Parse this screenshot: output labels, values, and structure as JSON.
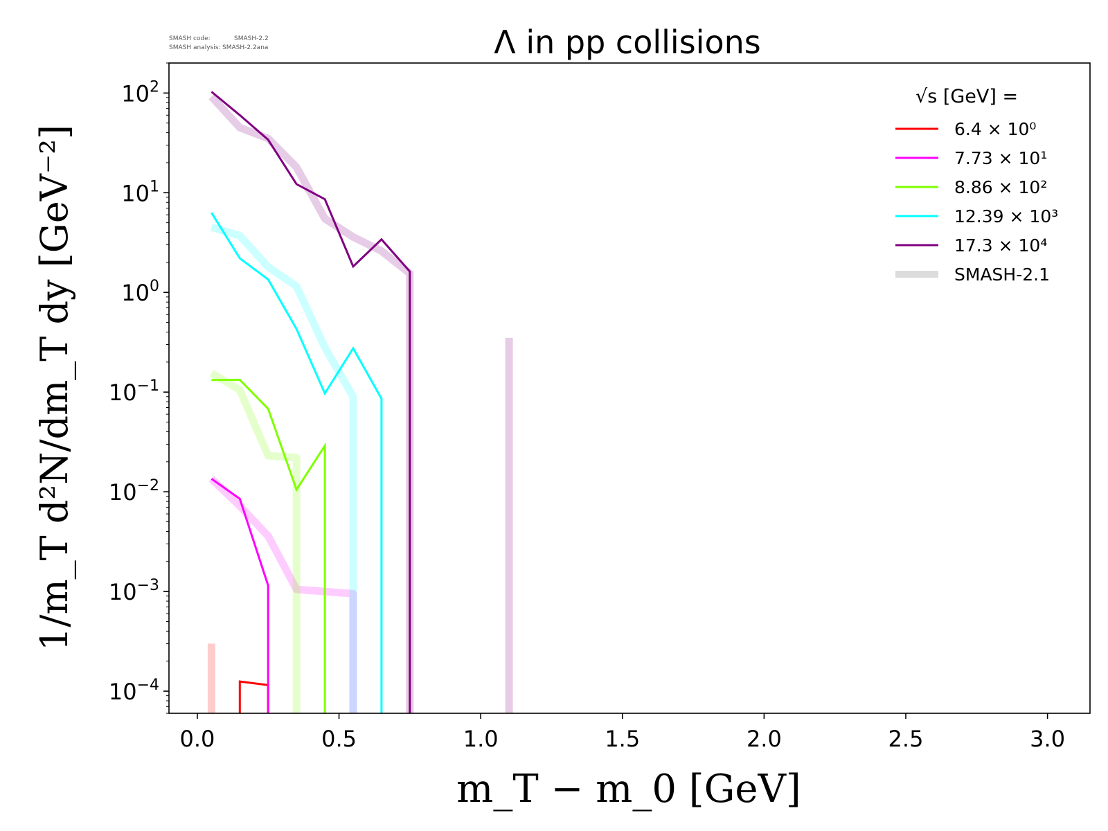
{
  "meta": {
    "code_label": "SMASH code:",
    "code_value": "SMASH-2.2",
    "analysis_label": "SMASH analysis:",
    "analysis_value": "SMASH-2.2ana"
  },
  "chart_data": {
    "type": "line",
    "title": "Λ in pp collisions",
    "xlabel": "m_T − m_0 [GeV]",
    "ylabel": "1/m_T d²N/dm_T dy [GeV⁻²]",
    "xlim": [
      -0.1,
      3.15
    ],
    "ylim": [
      6e-05,
      200
    ],
    "yscale": "log",
    "xticks": [
      "0.0",
      "0.5",
      "1.0",
      "1.5",
      "2.0",
      "2.5",
      "3.0"
    ],
    "yticks": [
      {
        "mantissa": "10",
        "exp": "−4"
      },
      {
        "mantissa": "10",
        "exp": "−3"
      },
      {
        "mantissa": "10",
        "exp": "−2"
      },
      {
        "mantissa": "10",
        "exp": "−1"
      },
      {
        "mantissa": "10",
        "exp": "0"
      },
      {
        "mantissa": "10",
        "exp": "1"
      },
      {
        "mantissa": "10",
        "exp": "2"
      }
    ],
    "legend": {
      "position": "top-right",
      "header": "√s  [GeV] =",
      "reference_label": "SMASH-2.1"
    },
    "series": [
      {
        "name": "6.4 × 10⁰",
        "color": "#ff0000",
        "points": [
          [
            0.15,
            1e-07
          ],
          [
            0.15,
            0.000125
          ],
          [
            0.25,
            0.000115
          ],
          [
            0.25,
            1e-07
          ]
        ],
        "reference_points": [
          [
            0.05,
            1e-07
          ],
          [
            0.05,
            0.0003
          ]
        ]
      },
      {
        "name": "7.73 × 10¹",
        "color": "#ff00ff",
        "points": [
          [
            0.05,
            0.0135
          ],
          [
            0.15,
            0.0085
          ],
          [
            0.25,
            0.00115
          ],
          [
            0.25,
            1e-07
          ]
        ],
        "reference_points": [
          [
            0.05,
            0.0135
          ],
          [
            0.15,
            0.0072
          ],
          [
            0.25,
            0.0036
          ],
          [
            0.35,
            0.00105
          ],
          [
            0.55,
            0.00095
          ],
          [
            0.55,
            1e-07
          ]
        ]
      },
      {
        "name": "8.86 × 10²",
        "color": "#7fff00",
        "points": [
          [
            0.05,
            0.132
          ],
          [
            0.15,
            0.133
          ],
          [
            0.25,
            0.068
          ],
          [
            0.35,
            0.0105
          ],
          [
            0.45,
            0.029
          ],
          [
            0.45,
            1e-07
          ]
        ],
        "reference_points": [
          [
            0.05,
            0.155
          ],
          [
            0.15,
            0.105
          ],
          [
            0.25,
            0.023
          ],
          [
            0.35,
            0.022
          ],
          [
            0.35,
            1e-07
          ]
        ]
      },
      {
        "name": "12.39 × 10³",
        "color": "#00ffff",
        "points": [
          [
            0.05,
            6.3
          ],
          [
            0.15,
            2.2
          ],
          [
            0.25,
            1.35
          ],
          [
            0.35,
            0.43
          ],
          [
            0.45,
            0.097
          ],
          [
            0.55,
            0.275
          ],
          [
            0.65,
            0.086
          ],
          [
            0.65,
            1e-07
          ]
        ],
        "reference_points": [
          [
            0.05,
            4.5
          ],
          [
            0.15,
            3.7
          ],
          [
            0.25,
            1.8
          ],
          [
            0.35,
            1.15
          ],
          [
            0.45,
            0.28
          ],
          [
            0.55,
            0.09
          ],
          [
            0.55,
            1e-07
          ]
        ]
      },
      {
        "name": "17.3 × 10⁴",
        "color": "#800080",
        "points": [
          [
            0.05,
            103
          ],
          [
            0.15,
            60
          ],
          [
            0.25,
            34
          ],
          [
            0.35,
            12.2
          ],
          [
            0.45,
            8.6
          ],
          [
            0.55,
            1.82
          ],
          [
            0.65,
            3.4
          ],
          [
            0.75,
            1.62
          ],
          [
            0.75,
            1e-07
          ]
        ],
        "reference_points": [
          [
            0.05,
            92
          ],
          [
            0.15,
            45
          ],
          [
            0.25,
            35
          ],
          [
            0.35,
            18
          ],
          [
            0.45,
            5.5
          ],
          [
            0.55,
            3.6
          ],
          [
            0.65,
            2.6
          ],
          [
            0.75,
            1.55
          ],
          [
            0.75,
            1e-07
          ]
        ]
      },
      {
        "name": "",
        "color": "#800080",
        "points": [],
        "reference_points": [
          [
            1.1,
            1e-07
          ],
          [
            1.1,
            0.35
          ]
        ]
      }
    ]
  }
}
